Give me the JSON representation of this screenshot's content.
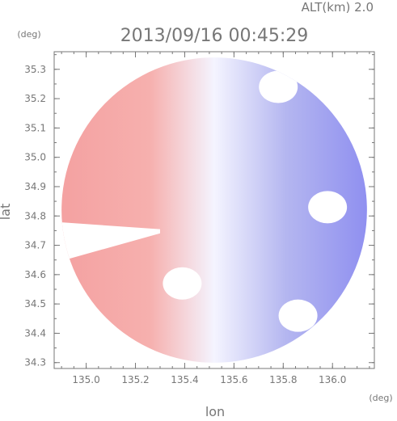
{
  "header": {
    "altitude_label": "ALT(km) 2.0",
    "timestamp": "2013/09/16 00:45:29"
  },
  "chart_data": {
    "type": "heatmap",
    "title": "2013/09/16 00:45:29",
    "xlabel": "lon",
    "ylabel": "lat",
    "x_unit": "(deg)",
    "y_unit": "(deg)",
    "xlim": [
      134.87,
      136.17
    ],
    "ylim": [
      34.28,
      35.36
    ],
    "x_ticks": [
      135.0,
      135.2,
      135.4,
      135.6,
      135.8,
      136.0
    ],
    "y_ticks": [
      34.3,
      34.4,
      34.5,
      34.6,
      34.7,
      34.8,
      34.9,
      35.0,
      35.1,
      35.2,
      35.3
    ],
    "x_tick_labels": [
      "135.0",
      "135.2",
      "135.4",
      "135.6",
      "135.8",
      "136.0"
    ],
    "y_tick_labels": [
      "34.3",
      "34.4",
      "34.5",
      "34.6",
      "34.7",
      "34.8",
      "34.9",
      "35.0",
      "35.1",
      "35.2",
      "35.3"
    ],
    "radar_center": {
      "lon": 135.52,
      "lat": 34.82
    },
    "radar_range_deg": 0.62,
    "zero_line_lon": 135.52,
    "colors": {
      "positive": "#f4a0a0",
      "neutral": "#f4f4ff",
      "negative": "#8c8cf0",
      "axis": "#777777"
    },
    "no_data_regions": [
      {
        "type": "wedge",
        "lon": [
          134.87,
          135.3
        ],
        "lat": [
          34.64,
          34.78
        ]
      },
      {
        "type": "patch",
        "lon": 135.39,
        "lat": 34.57
      },
      {
        "type": "patch",
        "lon": 135.98,
        "lat": 34.83
      },
      {
        "type": "patch",
        "lon": 135.86,
        "lat": 34.46
      },
      {
        "type": "patch",
        "lon": 135.78,
        "lat": 35.24
      }
    ]
  }
}
